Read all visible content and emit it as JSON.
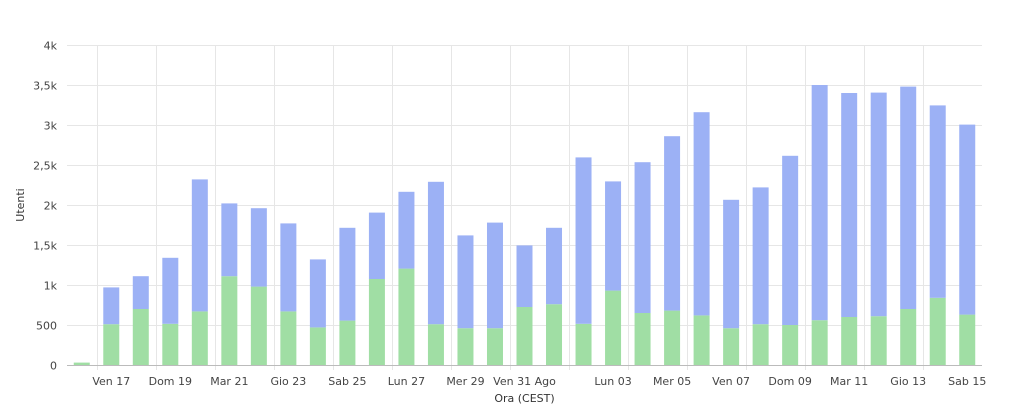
{
  "chart_data": {
    "type": "bar",
    "stacked": true,
    "title": "",
    "xlabel": "Ora (CEST)",
    "ylabel": "Utenti",
    "ylim": [
      0,
      4000
    ],
    "yticks": [
      0,
      500,
      1000,
      1500,
      2000,
      2500,
      3000,
      3500,
      4000
    ],
    "ytick_labels": [
      "0",
      "500",
      "1k",
      "1,5k",
      "2k",
      "2,5k",
      "3k",
      "3,5k",
      "4k"
    ],
    "xtick_labels": [
      {
        "index": 1,
        "label": "Ven 17"
      },
      {
        "index": 3,
        "label": "Dom 19"
      },
      {
        "index": 5,
        "label": "Mar 21"
      },
      {
        "index": 7,
        "label": "Gio 23"
      },
      {
        "index": 9,
        "label": "Sab 25"
      },
      {
        "index": 11,
        "label": "Lun 27"
      },
      {
        "index": 13,
        "label": "Mer 29"
      },
      {
        "index": 15,
        "label": "Ven 31 Ago"
      },
      {
        "index": 18,
        "label": "Lun 03"
      },
      {
        "index": 20,
        "label": "Mer 05"
      },
      {
        "index": 22,
        "label": "Ven 07"
      },
      {
        "index": 24,
        "label": "Dom 09"
      },
      {
        "index": 26,
        "label": "Mar 11"
      },
      {
        "index": 28,
        "label": "Gio 13"
      },
      {
        "index": 30,
        "label": "Sab 15"
      }
    ],
    "grid": true,
    "colors": {
      "bottom": "#a0dea4",
      "top": "#9cb1f5",
      "grid": "#e6e6e6",
      "axis": "#bbbbbb"
    },
    "series": [
      {
        "values": [
          30,
          510,
          700,
          515,
          670,
          1110,
          980,
          670,
          470,
          555,
          1075,
          1205,
          510,
          460,
          460,
          725,
          760,
          515,
          930,
          650,
          680,
          620,
          460,
          510,
          500,
          560,
          600,
          610,
          700,
          840,
          630
        ]
      },
      {
        "values": [
          0,
          460,
          410,
          825,
          1650,
          910,
          980,
          1100,
          850,
          1160,
          830,
          960,
          1780,
          1160,
          1320,
          770,
          955,
          2080,
          1365,
          1885,
          2180,
          2540,
          1605,
          1710,
          2115,
          2940,
          2800,
          2795,
          2780,
          2405,
          2375
        ]
      }
    ]
  }
}
